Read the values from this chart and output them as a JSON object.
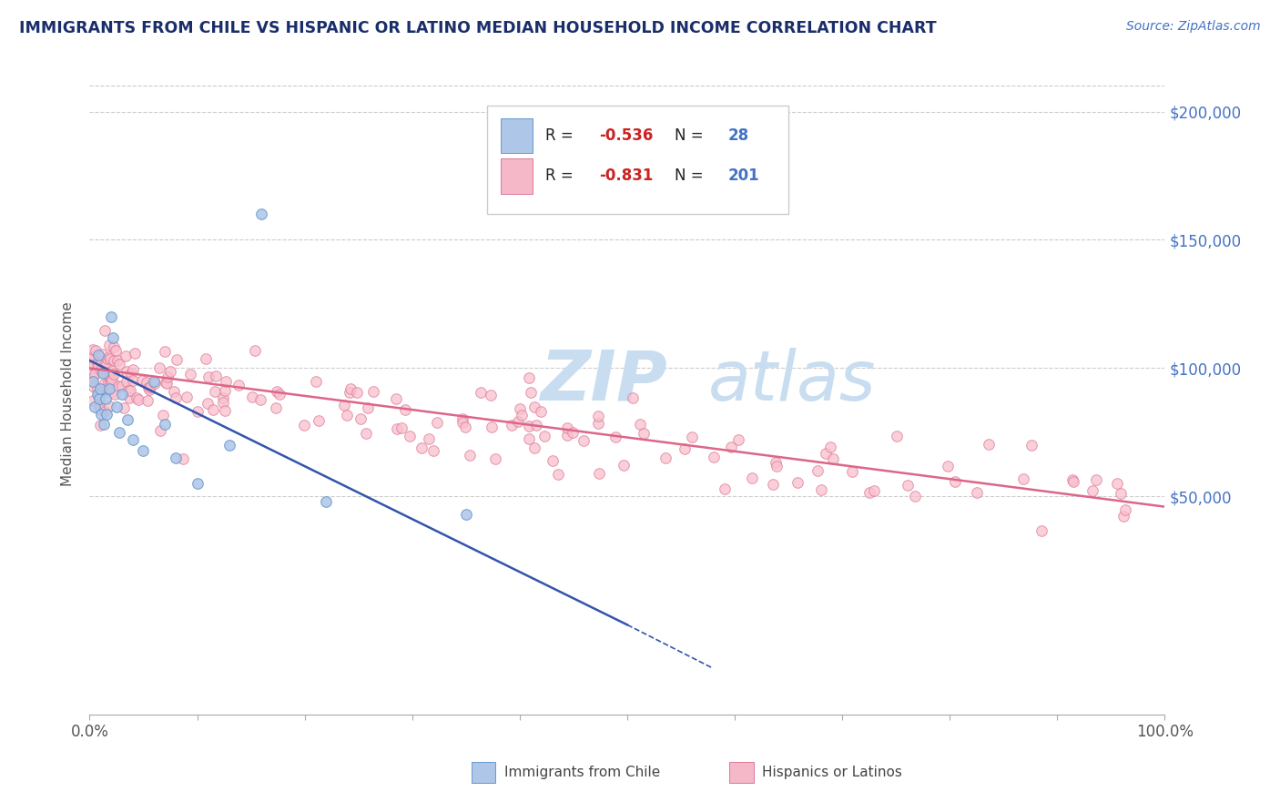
{
  "title": "IMMIGRANTS FROM CHILE VS HISPANIC OR LATINO MEDIAN HOUSEHOLD INCOME CORRELATION CHART",
  "source_text": "Source: ZipAtlas.com",
  "ylabel": "Median Household Income",
  "xlim": [
    0,
    100
  ],
  "ylim_bottom": -35000,
  "ylim_top": 215000,
  "yticks": [
    50000,
    100000,
    150000,
    200000
  ],
  "ytick_labels": [
    "$50,000",
    "$100,000",
    "$150,000",
    "$200,000"
  ],
  "title_color": "#1a2e6b",
  "grid_color": "#cccccc",
  "background_color": "#ffffff",
  "right_label_color": "#4472c4",
  "legend_color1": "#aec6e8",
  "legend_color2": "#f4b8c8",
  "scatter1_color": "#aec6e8",
  "scatter1_edge": "#6699cc",
  "scatter2_color": "#f9c0cc",
  "scatter2_edge": "#dd7799",
  "line1_color": "#3355aa",
  "line2_color": "#dd6688",
  "watermark_zip": "ZIP",
  "watermark_atlas": "atlas",
  "watermark_color_zip": "#c8ddf0",
  "watermark_color_atlas": "#c8ddf0",
  "r_value_color": "#cc2222",
  "n_value_color": "#4472c4",
  "text_dark": "#222222"
}
